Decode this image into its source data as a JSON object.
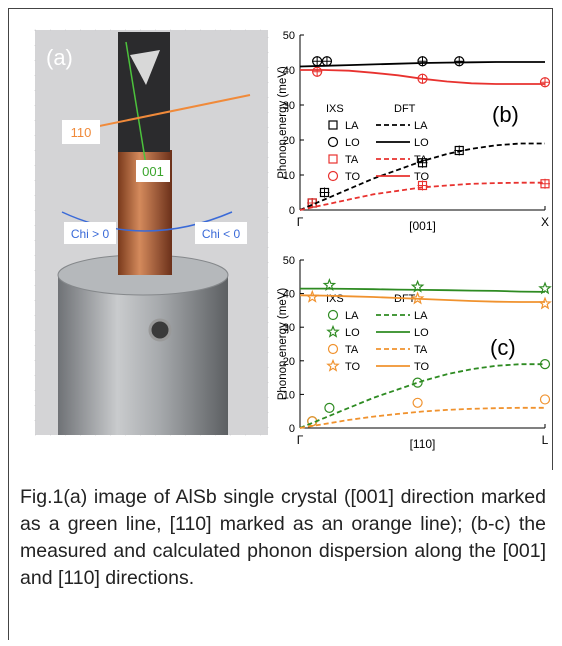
{
  "photo": {
    "panel_label": "(a)",
    "labels": [
      "110",
      "001",
      "Chi > 0",
      "Chi < 0"
    ]
  },
  "chart_data": [
    {
      "type": "line",
      "panel_label": "(b)",
      "ylabel": "Phonon energy (meV)",
      "xlabel": "[001]",
      "xlim": [
        0,
        1
      ],
      "ylim": [
        0,
        50
      ],
      "xticks": [
        {
          "value": 0,
          "label": "Γ"
        },
        {
          "value": 1,
          "label": "X"
        }
      ],
      "yticks": [
        0,
        10,
        20,
        30,
        40,
        50
      ],
      "legend_titles": [
        "IXS",
        "DFT"
      ],
      "series": [
        {
          "name": "LA",
          "color": "#000000",
          "marker": "square",
          "x": [
            0.05,
            0.1,
            0.5,
            0.65
          ],
          "values": [
            2,
            5,
            13.5,
            17
          ]
        },
        {
          "name": "LO",
          "color": "#000000",
          "marker": "circle",
          "x": [
            0.07,
            0.11,
            0.5,
            0.65
          ],
          "values": [
            42.5,
            42.5,
            42.5,
            42.5
          ]
        },
        {
          "name": "TA",
          "color": "#e8322f",
          "marker": "square",
          "x": [
            0.05,
            0.5,
            1.0
          ],
          "values": [
            2,
            7,
            7.5
          ]
        },
        {
          "name": "TO",
          "color": "#e8322f",
          "marker": "circle",
          "x": [
            0.07,
            0.5,
            1.0
          ],
          "values": [
            39.5,
            37.5,
            36.5
          ]
        },
        {
          "name": "LA",
          "color": "#000000",
          "dash": true,
          "x": [
            0,
            0.1,
            0.2,
            0.3,
            0.4,
            0.5,
            0.6,
            0.7,
            0.8,
            0.9,
            1.0
          ],
          "values": [
            0,
            3,
            6,
            9,
            11.5,
            14,
            16,
            17.5,
            18.5,
            19,
            19
          ]
        },
        {
          "name": "LO",
          "color": "#000000",
          "dash": false,
          "x": [
            0,
            0.1,
            0.2,
            0.3,
            0.4,
            0.5,
            0.6,
            0.7,
            0.8,
            0.9,
            1.0
          ],
          "values": [
            41,
            41.2,
            41.4,
            41.6,
            41.8,
            42,
            42.1,
            42.2,
            42.3,
            42.3,
            42.3
          ]
        },
        {
          "name": "TA",
          "color": "#e8322f",
          "dash": true,
          "x": [
            0,
            0.1,
            0.2,
            0.3,
            0.4,
            0.5,
            0.6,
            0.7,
            0.8,
            0.9,
            1.0
          ],
          "values": [
            0,
            1.5,
            3,
            4.5,
            5.5,
            6.5,
            7,
            7.5,
            7.7,
            7.8,
            7.8
          ]
        },
        {
          "name": "TO",
          "color": "#e8322f",
          "dash": false,
          "x": [
            0,
            0.1,
            0.2,
            0.3,
            0.4,
            0.5,
            0.6,
            0.7,
            0.8,
            0.9,
            1.0
          ],
          "values": [
            40,
            40,
            39.8,
            39.2,
            38.5,
            37.5,
            36.7,
            36.2,
            36,
            36,
            36
          ]
        }
      ]
    },
    {
      "type": "line",
      "panel_label": "(c)",
      "ylabel": "Phonon energy (meV)",
      "xlabel": "[110]",
      "xlim": [
        0,
        1
      ],
      "ylim": [
        0,
        50
      ],
      "xticks": [
        {
          "value": 0,
          "label": "Γ"
        },
        {
          "value": 1,
          "label": "L"
        }
      ],
      "yticks": [
        0,
        10,
        20,
        30,
        40,
        50
      ],
      "legend_titles": [
        "IXS",
        "DFT"
      ],
      "series": [
        {
          "name": "LA",
          "color": "#2e8b22",
          "marker": "circle",
          "x": [
            0.05,
            0.12,
            0.48,
            1.0
          ],
          "values": [
            2,
            6,
            13.5,
            19
          ]
        },
        {
          "name": "LO",
          "color": "#2e8b22",
          "marker": "star",
          "x": [
            0.12,
            0.48,
            1.0
          ],
          "values": [
            42.5,
            42,
            41.5
          ]
        },
        {
          "name": "TA",
          "color": "#f0922e",
          "marker": "circle",
          "x": [
            0.05,
            0.48,
            1.0
          ],
          "values": [
            2,
            7.5,
            8.5
          ]
        },
        {
          "name": "TO",
          "color": "#f0922e",
          "marker": "star",
          "x": [
            0.05,
            0.48,
            1.0
          ],
          "values": [
            39,
            38.5,
            37
          ]
        },
        {
          "name": "LA",
          "color": "#2e8b22",
          "dash": true,
          "x": [
            0,
            0.1,
            0.2,
            0.3,
            0.4,
            0.5,
            0.6,
            0.7,
            0.8,
            0.9,
            1.0
          ],
          "values": [
            0,
            3,
            6,
            9,
            11.5,
            14,
            16,
            17.5,
            18.5,
            19,
            19
          ]
        },
        {
          "name": "LO",
          "color": "#2e8b22",
          "dash": false,
          "x": [
            0,
            0.1,
            0.2,
            0.3,
            0.4,
            0.5,
            0.6,
            0.7,
            0.8,
            0.9,
            1.0
          ],
          "values": [
            41.5,
            41.5,
            41.4,
            41.3,
            41.2,
            41.1,
            41,
            40.9,
            40.8,
            40.6,
            40.5
          ]
        },
        {
          "name": "TA",
          "color": "#f0922e",
          "dash": true,
          "x": [
            0,
            0.1,
            0.2,
            0.3,
            0.4,
            0.5,
            0.6,
            0.7,
            0.8,
            0.9,
            1.0
          ],
          "values": [
            0,
            1.2,
            2.4,
            3.4,
            4.2,
            4.9,
            5.4,
            5.7,
            5.9,
            6,
            6
          ]
        },
        {
          "name": "TO",
          "color": "#f0922e",
          "dash": false,
          "x": [
            0,
            0.1,
            0.2,
            0.3,
            0.4,
            0.5,
            0.6,
            0.7,
            0.8,
            0.9,
            1.0
          ],
          "values": [
            39.5,
            39.4,
            39.2,
            39,
            38.7,
            38.4,
            38.1,
            37.8,
            37.6,
            37.5,
            37.5
          ]
        }
      ]
    }
  ],
  "caption": "Fig.1(a) image of AlSb single crystal ([001] direction marked as a green line, [110] marked as an orange line); (b-c) the measured and calculated phonon dispersion along the [001] and [110] directions."
}
